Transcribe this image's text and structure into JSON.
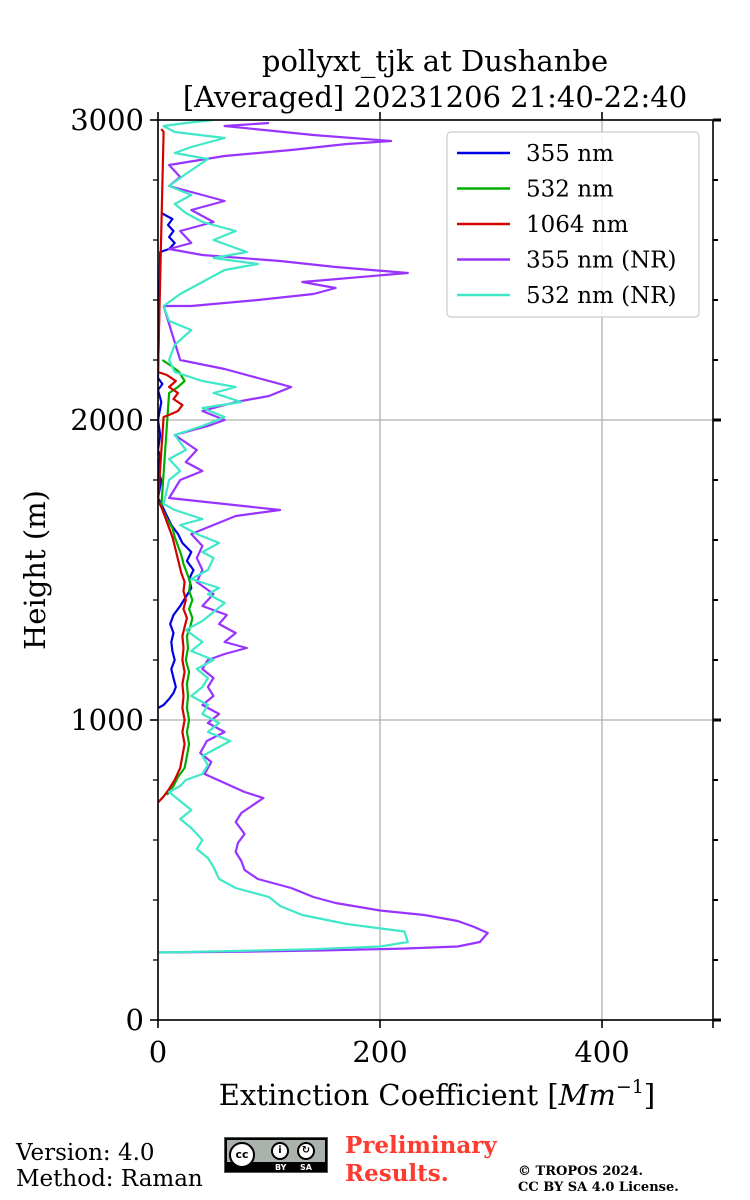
{
  "chart_data": {
    "type": "line",
    "title": [
      "pollyxt_tjk at Dushanbe",
      "[Averaged] 20231206 21:40-22:40"
    ],
    "xlabel": "Extinction Coefficient [",
    "xlabel_unit": "Mm",
    "xlabel_exp": "−1",
    "xlabel_close": "]",
    "ylabel": "Height (m)",
    "xlim": [
      0,
      500
    ],
    "ylim": [
      0,
      3000
    ],
    "xticks": [
      0,
      200,
      400
    ],
    "yticks": [
      0,
      1000,
      2000,
      3000
    ],
    "grid": true,
    "legend_position": "top-right",
    "series": [
      {
        "name": "355 nm",
        "color": "#0000e6",
        "points": [
          [
            0,
            1040
          ],
          [
            5,
            1050
          ],
          [
            10,
            1070
          ],
          [
            14,
            1090
          ],
          [
            16,
            1110
          ],
          [
            14,
            1140
          ],
          [
            12,
            1170
          ],
          [
            15,
            1200
          ],
          [
            13,
            1230
          ],
          [
            12,
            1260
          ],
          [
            14,
            1290
          ],
          [
            11,
            1320
          ],
          [
            14,
            1350
          ],
          [
            20,
            1380
          ],
          [
            25,
            1410
          ],
          [
            30,
            1440
          ],
          [
            28,
            1470
          ],
          [
            32,
            1500
          ],
          [
            26,
            1530
          ],
          [
            30,
            1560
          ],
          [
            22,
            1590
          ],
          [
            18,
            1620
          ],
          [
            12,
            1650
          ],
          [
            8,
            1680
          ],
          [
            3,
            1720
          ],
          [
            0,
            1740
          ],
          [
            3,
            1800
          ],
          [
            0,
            1830
          ],
          [
            2,
            1880
          ],
          [
            0,
            1900
          ],
          [
            2,
            1950
          ],
          [
            0,
            2000
          ],
          [
            3,
            2060
          ],
          [
            0,
            2100
          ],
          [
            4,
            2120
          ],
          [
            0,
            2140
          ],
          [
            2,
            2560
          ],
          [
            10,
            2570
          ],
          [
            15,
            2590
          ],
          [
            10,
            2610
          ],
          [
            14,
            2630
          ],
          [
            9,
            2650
          ],
          [
            13,
            2670
          ],
          [
            3,
            2690
          ]
        ]
      },
      {
        "name": "532 nm",
        "color": "#00b000",
        "points": [
          [
            8,
            750
          ],
          [
            14,
            780
          ],
          [
            18,
            810
          ],
          [
            24,
            840
          ],
          [
            26,
            880
          ],
          [
            28,
            920
          ],
          [
            26,
            960
          ],
          [
            28,
            1000
          ],
          [
            26,
            1040
          ],
          [
            27,
            1080
          ],
          [
            26,
            1120
          ],
          [
            28,
            1160
          ],
          [
            25,
            1200
          ],
          [
            27,
            1240
          ],
          [
            26,
            1280
          ],
          [
            29,
            1310
          ],
          [
            31,
            1340
          ],
          [
            28,
            1370
          ],
          [
            31,
            1400
          ],
          [
            28,
            1430
          ],
          [
            29,
            1460
          ],
          [
            26,
            1490
          ],
          [
            23,
            1520
          ],
          [
            21,
            1550
          ],
          [
            18,
            1580
          ],
          [
            15,
            1610
          ],
          [
            13,
            1640
          ],
          [
            8,
            1670
          ],
          [
            3,
            1710
          ],
          [
            10,
            2090
          ],
          [
            18,
            2110
          ],
          [
            24,
            2130
          ],
          [
            19,
            2160
          ],
          [
            12,
            2180
          ],
          [
            4,
            2200
          ]
        ]
      },
      {
        "name": "1064 nm",
        "color": "#d40000",
        "points": [
          [
            0,
            725
          ],
          [
            5,
            745
          ],
          [
            10,
            770
          ],
          [
            15,
            800
          ],
          [
            20,
            840
          ],
          [
            22,
            880
          ],
          [
            24,
            920
          ],
          [
            22,
            960
          ],
          [
            24,
            1000
          ],
          [
            22,
            1040
          ],
          [
            23,
            1080
          ],
          [
            22,
            1120
          ],
          [
            24,
            1160
          ],
          [
            22,
            1200
          ],
          [
            23,
            1240
          ],
          [
            22,
            1280
          ],
          [
            24,
            1310
          ],
          [
            26,
            1340
          ],
          [
            23,
            1370
          ],
          [
            25,
            1400
          ],
          [
            23,
            1430
          ],
          [
            24,
            1460
          ],
          [
            21,
            1490
          ],
          [
            19,
            1520
          ],
          [
            17,
            1550
          ],
          [
            15,
            1580
          ],
          [
            13,
            1610
          ],
          [
            10,
            1640
          ],
          [
            6,
            1680
          ],
          [
            3,
            1710
          ],
          [
            0,
            1730
          ],
          [
            5,
            2010
          ],
          [
            12,
            2020
          ],
          [
            18,
            2030
          ],
          [
            22,
            2050
          ],
          [
            14,
            2070
          ],
          [
            18,
            2090
          ],
          [
            10,
            2110
          ],
          [
            16,
            2130
          ],
          [
            8,
            2150
          ],
          [
            0,
            2160
          ],
          [
            5,
            2960
          ],
          [
            3,
            2970
          ]
        ]
      },
      {
        "name": "355 nm (NR)",
        "color": "#9933ff",
        "points": [
          [
            0,
            225
          ],
          [
            80,
            228
          ],
          [
            150,
            232
          ],
          [
            220,
            238
          ],
          [
            270,
            245
          ],
          [
            290,
            260
          ],
          [
            297,
            290
          ],
          [
            285,
            310
          ],
          [
            270,
            330
          ],
          [
            240,
            350
          ],
          [
            200,
            365
          ],
          [
            160,
            390
          ],
          [
            140,
            410
          ],
          [
            120,
            440
          ],
          [
            90,
            470
          ],
          [
            78,
            500
          ],
          [
            75,
            530
          ],
          [
            70,
            560
          ],
          [
            72,
            590
          ],
          [
            78,
            620
          ],
          [
            70,
            660
          ],
          [
            75,
            690
          ],
          [
            95,
            740
          ],
          [
            78,
            760
          ],
          [
            60,
            790
          ],
          [
            42,
            820
          ],
          [
            48,
            860
          ],
          [
            38,
            890
          ],
          [
            44,
            930
          ],
          [
            60,
            960
          ],
          [
            45,
            990
          ],
          [
            55,
            1020
          ],
          [
            40,
            1050
          ],
          [
            50,
            1080
          ],
          [
            45,
            1110
          ],
          [
            50,
            1140
          ],
          [
            40,
            1170
          ],
          [
            45,
            1200
          ],
          [
            60,
            1220
          ],
          [
            80,
            1240
          ],
          [
            60,
            1260
          ],
          [
            70,
            1290
          ],
          [
            55,
            1320
          ],
          [
            62,
            1350
          ],
          [
            40,
            1380
          ],
          [
            50,
            1420
          ],
          [
            35,
            1460
          ],
          [
            40,
            1500
          ],
          [
            35,
            1540
          ],
          [
            40,
            1580
          ],
          [
            30,
            1620
          ],
          [
            50,
            1650
          ],
          [
            70,
            1680
          ],
          [
            110,
            1700
          ],
          [
            60,
            1720
          ],
          [
            10,
            1740
          ],
          [
            20,
            1800
          ],
          [
            40,
            1830
          ],
          [
            25,
            1860
          ],
          [
            35,
            1900
          ],
          [
            15,
            1950
          ],
          [
            45,
            1980
          ],
          [
            60,
            2000
          ],
          [
            40,
            2030
          ],
          [
            70,
            2060
          ],
          [
            100,
            2080
          ],
          [
            120,
            2110
          ],
          [
            90,
            2140
          ],
          [
            60,
            2170
          ],
          [
            20,
            2200
          ],
          [
            5,
            2380
          ],
          [
            30,
            2380
          ],
          [
            90,
            2400
          ],
          [
            140,
            2420
          ],
          [
            160,
            2440
          ],
          [
            130,
            2460
          ],
          [
            225,
            2490
          ],
          [
            160,
            2510
          ],
          [
            110,
            2530
          ],
          [
            40,
            2550
          ],
          [
            10,
            2570
          ],
          [
            30,
            2590
          ],
          [
            20,
            2630
          ],
          [
            50,
            2660
          ],
          [
            30,
            2700
          ],
          [
            60,
            2730
          ],
          [
            30,
            2760
          ],
          [
            10,
            2780
          ],
          [
            20,
            2810
          ],
          [
            10,
            2850
          ],
          [
            60,
            2880
          ],
          [
            120,
            2900
          ],
          [
            170,
            2920
          ],
          [
            210,
            2930
          ],
          [
            140,
            2950
          ],
          [
            100,
            2965
          ],
          [
            60,
            2980
          ],
          [
            100,
            2990
          ]
        ]
      },
      {
        "name": "532 nm (NR)",
        "color": "#40e8c8",
        "points": [
          [
            0,
            225
          ],
          [
            70,
            230
          ],
          [
            140,
            236
          ],
          [
            200,
            245
          ],
          [
            225,
            260
          ],
          [
            222,
            295
          ],
          [
            170,
            320
          ],
          [
            130,
            350
          ],
          [
            110,
            380
          ],
          [
            100,
            410
          ],
          [
            70,
            440
          ],
          [
            55,
            470
          ],
          [
            50,
            510
          ],
          [
            45,
            540
          ],
          [
            35,
            570
          ],
          [
            40,
            600
          ],
          [
            30,
            640
          ],
          [
            20,
            670
          ],
          [
            30,
            700
          ],
          [
            20,
            730
          ],
          [
            10,
            760
          ],
          [
            20,
            780
          ],
          [
            25,
            800
          ],
          [
            40,
            820
          ],
          [
            45,
            850
          ],
          [
            40,
            880
          ],
          [
            50,
            900
          ],
          [
            65,
            930
          ],
          [
            45,
            960
          ],
          [
            55,
            990
          ],
          [
            40,
            1020
          ],
          [
            45,
            1050
          ],
          [
            30,
            1080
          ],
          [
            40,
            1110
          ],
          [
            45,
            1140
          ],
          [
            35,
            1170
          ],
          [
            50,
            1200
          ],
          [
            30,
            1230
          ],
          [
            40,
            1260
          ],
          [
            25,
            1300
          ],
          [
            40,
            1330
          ],
          [
            50,
            1360
          ],
          [
            60,
            1390
          ],
          [
            45,
            1420
          ],
          [
            55,
            1440
          ],
          [
            30,
            1470
          ],
          [
            45,
            1500
          ],
          [
            50,
            1540
          ],
          [
            40,
            1560
          ],
          [
            55,
            1590
          ],
          [
            35,
            1620
          ],
          [
            20,
            1650
          ],
          [
            40,
            1670
          ],
          [
            15,
            1700
          ],
          [
            5,
            1720
          ],
          [
            10,
            1800
          ],
          [
            20,
            1830
          ],
          [
            10,
            1870
          ],
          [
            25,
            1900
          ],
          [
            15,
            1950
          ],
          [
            40,
            1980
          ],
          [
            60,
            2010
          ],
          [
            40,
            2040
          ],
          [
            75,
            2060
          ],
          [
            50,
            2090
          ],
          [
            70,
            2110
          ],
          [
            40,
            2130
          ],
          [
            15,
            2160
          ],
          [
            10,
            2200
          ],
          [
            15,
            2250
          ],
          [
            30,
            2300
          ],
          [
            10,
            2330
          ],
          [
            5,
            2380
          ],
          [
            20,
            2420
          ],
          [
            40,
            2460
          ],
          [
            60,
            2500
          ],
          [
            90,
            2520
          ],
          [
            50,
            2540
          ],
          [
            80,
            2560
          ],
          [
            50,
            2600
          ],
          [
            70,
            2630
          ],
          [
            40,
            2660
          ],
          [
            25,
            2690
          ],
          [
            15,
            2720
          ],
          [
            30,
            2750
          ],
          [
            10,
            2780
          ],
          [
            25,
            2820
          ],
          [
            45,
            2870
          ],
          [
            15,
            2890
          ],
          [
            30,
            2910
          ],
          [
            60,
            2940
          ],
          [
            15,
            2960
          ],
          [
            5,
            2980
          ],
          [
            25,
            2990
          ],
          [
            50,
            3000
          ]
        ]
      }
    ]
  },
  "footer": {
    "version": "Version: 4.0",
    "method": "Method: Raman",
    "license_badge": {
      "cc": "cc",
      "by": "BY",
      "sa": "SA"
    },
    "preliminary": [
      "Preliminary",
      "Results."
    ],
    "copyright": [
      "© TROPOS 2024.",
      "CC BY SA 4.0 License."
    ]
  }
}
